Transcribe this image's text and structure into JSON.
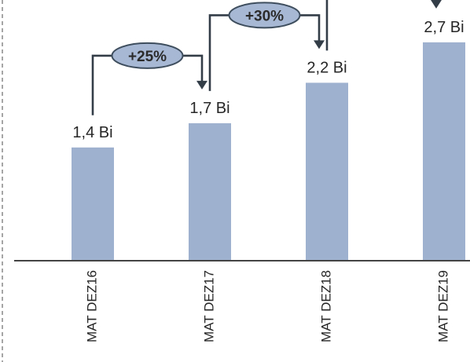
{
  "chart_data": {
    "type": "bar",
    "categories": [
      "MAT DEZ16",
      "MAT DEZ17",
      "MAT DEZ18",
      "MAT DEZ19"
    ],
    "values": [
      1.4,
      1.7,
      2.2,
      2.7
    ],
    "value_labels": [
      "1,4 Bi",
      "1,7 Bi",
      "2,2 Bi",
      "2,7 Bi"
    ],
    "growth_annotations": [
      {
        "from": "MAT DEZ16",
        "to": "MAT DEZ17",
        "label": "+25%"
      },
      {
        "from": "MAT DEZ17",
        "to": "MAT DEZ18",
        "label": "+30%"
      },
      {
        "from": "MAT DEZ18",
        "to": "MAT DEZ19",
        "label": ""
      }
    ],
    "title": "",
    "xlabel": "",
    "ylabel": "",
    "ylim": [
      0,
      3.0
    ],
    "grid": false,
    "legend": "none",
    "colors": {
      "bar": "#9eb2d0",
      "badge_fill": "#a7b8d4",
      "badge_stroke": "#3f4e5e",
      "connector": "#333d48",
      "axis": "#444444",
      "border": "#777777"
    }
  }
}
